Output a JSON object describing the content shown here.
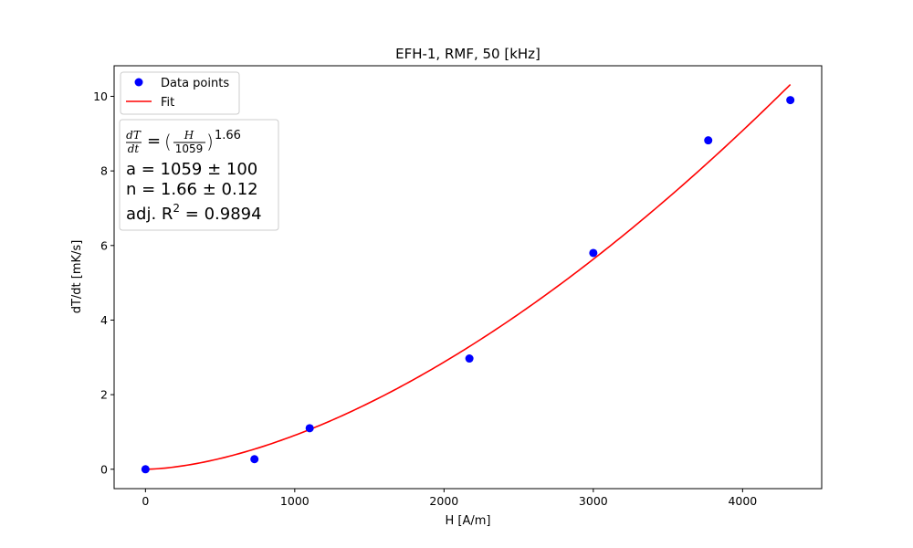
{
  "chart_data": {
    "type": "scatter",
    "title": "EFH-1, RMF, 50 [kHz]",
    "xlabel": "H [A/m]",
    "ylabel": "dT/dt [mK/s]",
    "xlim": [
      -210,
      4530
    ],
    "ylim": [
      -0.52,
      10.82
    ],
    "xticks": [
      0,
      1000,
      2000,
      3000,
      4000
    ],
    "yticks": [
      0,
      2,
      4,
      6,
      8,
      10
    ],
    "grid": false,
    "legend_position": "top-left",
    "series": [
      {
        "name": "Data points",
        "kind": "scatter",
        "color": "#0000ff",
        "x": [
          0,
          730,
          1100,
          2170,
          3000,
          3770,
          4320
        ],
        "y": [
          0.0,
          0.27,
          1.1,
          2.97,
          5.8,
          8.82,
          9.9
        ]
      },
      {
        "name": "Fit",
        "kind": "line",
        "color": "#ff0000",
        "model": "power",
        "a": 1059,
        "n": 1.66,
        "x_range": [
          0,
          4320
        ]
      }
    ],
    "annotation": {
      "formula_lhs": "dT/dt = (H/1059)",
      "formula_lhs_num": "dT",
      "formula_lhs_den": "dt",
      "formula_eq": "=",
      "formula_num": "H",
      "formula_den": "1059",
      "formula_exp": "1.66",
      "line_a": "a = 1059 ± 100",
      "line_n": "n = 1.66 ± 0.12",
      "line_r2_prefix": "adj.  R",
      "line_r2_sup": "2",
      "line_r2_value": " = 0.9894"
    }
  }
}
